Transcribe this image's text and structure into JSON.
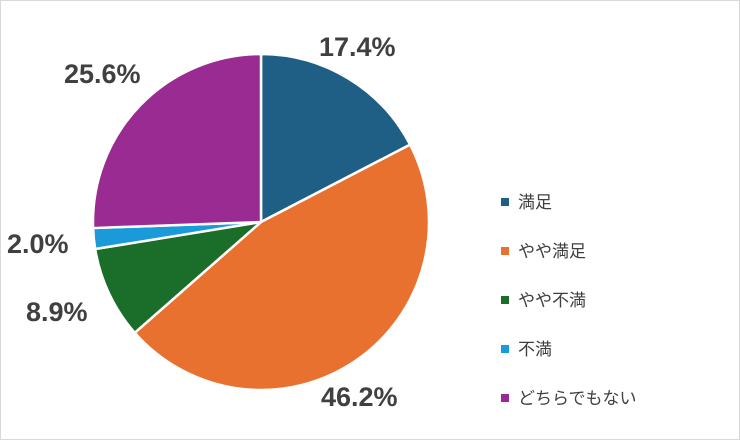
{
  "chart_data": {
    "type": "pie",
    "title": "",
    "start_angle_deg": 0,
    "direction": "clockwise",
    "legend_position": "right",
    "slices": [
      {
        "label": "満足",
        "value": 17.4,
        "display": "17.4%",
        "color": "#1f5f86"
      },
      {
        "label": "やや満足",
        "value": 46.2,
        "display": "46.2%",
        "color": "#e97130"
      },
      {
        "label": "やや不満",
        "value": 8.9,
        "display": "8.9%",
        "color": "#1a6e2a"
      },
      {
        "label": "不満",
        "value": 2.0,
        "display": "2.0%",
        "color": "#1a9ad8"
      },
      {
        "label": "どちらでもない",
        "value": 25.6,
        "display": "25.6%",
        "color": "#9a2b92"
      }
    ]
  }
}
